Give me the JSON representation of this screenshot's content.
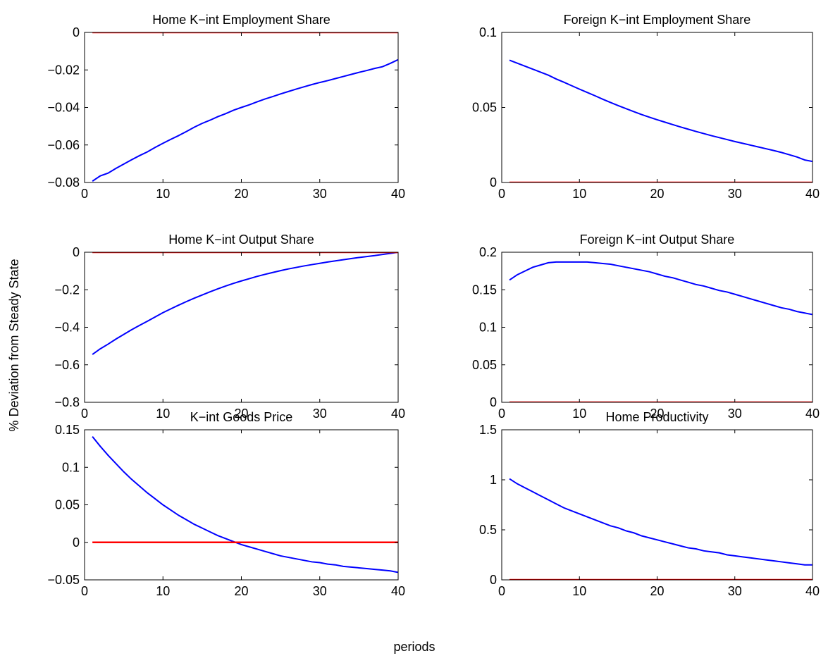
{
  "figure": {
    "ylabel": "% Deviation from Steady State",
    "xlabel": "periods"
  },
  "chart_data": [
    {
      "type": "line",
      "title": "Home K−int Employment Share",
      "xlim": [
        0,
        40
      ],
      "ylim": [
        -0.08,
        0
      ],
      "xticks": [
        0,
        10,
        20,
        30,
        40
      ],
      "xtick_labels": [
        "0",
        "10",
        "20",
        "30",
        "40"
      ],
      "yticks": [
        -0.08,
        -0.06,
        -0.04,
        -0.02,
        0
      ],
      "ytick_labels": [
        "−0.08",
        "−0.06",
        "−0.04",
        "−0.02",
        "0"
      ],
      "x": [
        1,
        2,
        3,
        4,
        5,
        6,
        7,
        8,
        9,
        10,
        11,
        12,
        13,
        14,
        15,
        16,
        17,
        18,
        19,
        20,
        21,
        22,
        23,
        24,
        25,
        26,
        27,
        28,
        29,
        30,
        31,
        32,
        33,
        34,
        35,
        36,
        37,
        38,
        39,
        40
      ],
      "series": [
        {
          "color": "#0000ff",
          "values": [
            -0.0793,
            -0.0765,
            -0.075,
            -0.0725,
            -0.0702,
            -0.0679,
            -0.0657,
            -0.0637,
            -0.0613,
            -0.0591,
            -0.057,
            -0.055,
            -0.0528,
            -0.0505,
            -0.0485,
            -0.0468,
            -0.0449,
            -0.0433,
            -0.0415,
            -0.04,
            -0.0386,
            -0.037,
            -0.0355,
            -0.0342,
            -0.0328,
            -0.0315,
            -0.0302,
            -0.029,
            -0.0278,
            -0.0267,
            -0.0257,
            -0.0246,
            -0.0235,
            -0.0224,
            -0.0213,
            -0.0203,
            -0.0192,
            -0.0183,
            -0.0165,
            -0.0145
          ]
        },
        {
          "color": "#ff0000",
          "values": [
            0,
            0,
            0,
            0,
            0,
            0,
            0,
            0,
            0,
            0,
            0,
            0,
            0,
            0,
            0,
            0,
            0,
            0,
            0,
            0,
            0,
            0,
            0,
            0,
            0,
            0,
            0,
            0,
            0,
            0,
            0,
            0,
            0,
            0,
            0,
            0,
            0,
            0,
            0,
            0
          ]
        }
      ]
    },
    {
      "type": "line",
      "title": "Foreign K−int Employment Share",
      "xlim": [
        0,
        40
      ],
      "ylim": [
        0,
        0.1
      ],
      "xticks": [
        0,
        10,
        20,
        30,
        40
      ],
      "xtick_labels": [
        "0",
        "10",
        "20",
        "30",
        "40"
      ],
      "yticks": [
        0,
        0.05,
        0.1
      ],
      "ytick_labels": [
        "0",
        "0.05",
        "0.1"
      ],
      "x": [
        1,
        2,
        3,
        4,
        5,
        6,
        7,
        8,
        9,
        10,
        11,
        12,
        13,
        14,
        15,
        16,
        17,
        18,
        19,
        20,
        21,
        22,
        23,
        24,
        25,
        26,
        27,
        28,
        29,
        30,
        31,
        32,
        33,
        34,
        35,
        36,
        37,
        38,
        39,
        40
      ],
      "series": [
        {
          "color": "#0000ff",
          "values": [
            0.0815,
            0.0795,
            0.0775,
            0.0755,
            0.0735,
            0.0715,
            0.069,
            0.0668,
            0.0645,
            0.0622,
            0.06,
            0.0578,
            0.0555,
            0.0533,
            0.0512,
            0.0492,
            0.0472,
            0.0453,
            0.0435,
            0.0418,
            0.0402,
            0.0386,
            0.037,
            0.0355,
            0.034,
            0.0326,
            0.0312,
            0.0299,
            0.0286,
            0.0273,
            0.0261,
            0.0249,
            0.0237,
            0.0225,
            0.0213,
            0.02,
            0.0185,
            0.017,
            0.015,
            0.014
          ]
        },
        {
          "color": "#ff0000",
          "values": [
            0,
            0,
            0,
            0,
            0,
            0,
            0,
            0,
            0,
            0,
            0,
            0,
            0,
            0,
            0,
            0,
            0,
            0,
            0,
            0,
            0,
            0,
            0,
            0,
            0,
            0,
            0,
            0,
            0,
            0,
            0,
            0,
            0,
            0,
            0,
            0,
            0,
            0,
            0,
            0
          ]
        }
      ]
    },
    {
      "type": "line",
      "title": "Home K−int Output Share",
      "xlim": [
        0,
        40
      ],
      "ylim": [
        -0.8,
        0
      ],
      "xticks": [
        0,
        10,
        20,
        30,
        40
      ],
      "xtick_labels": [
        "0",
        "10",
        "20",
        "30",
        "40"
      ],
      "yticks": [
        -0.8,
        -0.6,
        -0.4,
        -0.2,
        0
      ],
      "ytick_labels": [
        "−0.8",
        "−0.6",
        "−0.4",
        "−0.2",
        "0"
      ],
      "x": [
        1,
        2,
        3,
        4,
        5,
        6,
        7,
        8,
        9,
        10,
        11,
        12,
        13,
        14,
        15,
        16,
        17,
        18,
        19,
        20,
        21,
        22,
        23,
        24,
        25,
        26,
        27,
        28,
        29,
        30,
        31,
        32,
        33,
        34,
        35,
        36,
        37,
        38,
        39,
        40
      ],
      "series": [
        {
          "color": "#0000ff",
          "values": [
            -0.545,
            -0.515,
            -0.49,
            -0.463,
            -0.438,
            -0.413,
            -0.39,
            -0.368,
            -0.345,
            -0.322,
            -0.302,
            -0.282,
            -0.263,
            -0.245,
            -0.228,
            -0.211,
            -0.195,
            -0.18,
            -0.166,
            -0.153,
            -0.141,
            -0.129,
            -0.118,
            -0.108,
            -0.098,
            -0.089,
            -0.081,
            -0.073,
            -0.066,
            -0.059,
            -0.052,
            -0.046,
            -0.04,
            -0.034,
            -0.028,
            -0.023,
            -0.018,
            -0.012,
            -0.006,
            0.0
          ]
        },
        {
          "color": "#ff0000",
          "values": [
            0,
            0,
            0,
            0,
            0,
            0,
            0,
            0,
            0,
            0,
            0,
            0,
            0,
            0,
            0,
            0,
            0,
            0,
            0,
            0,
            0,
            0,
            0,
            0,
            0,
            0,
            0,
            0,
            0,
            0,
            0,
            0,
            0,
            0,
            0,
            0,
            0,
            0,
            0,
            0
          ]
        }
      ]
    },
    {
      "type": "line",
      "title": "Foreign K−int Output Share",
      "xlim": [
        0,
        40
      ],
      "ylim": [
        0,
        0.2
      ],
      "xticks": [
        0,
        10,
        20,
        30,
        40
      ],
      "xtick_labels": [
        "0",
        "10",
        "20",
        "30",
        "40"
      ],
      "yticks": [
        0,
        0.05,
        0.1,
        0.15,
        0.2
      ],
      "ytick_labels": [
        "0",
        "0.05",
        "0.1",
        "0.15",
        "0.2"
      ],
      "x": [
        1,
        2,
        3,
        4,
        5,
        6,
        7,
        8,
        9,
        10,
        11,
        12,
        13,
        14,
        15,
        16,
        17,
        18,
        19,
        20,
        21,
        22,
        23,
        24,
        25,
        26,
        27,
        28,
        29,
        30,
        31,
        32,
        33,
        34,
        35,
        36,
        37,
        38,
        39,
        40
      ],
      "series": [
        {
          "color": "#0000ff",
          "values": [
            0.163,
            0.17,
            0.175,
            0.18,
            0.183,
            0.186,
            0.187,
            0.187,
            0.187,
            0.187,
            0.187,
            0.186,
            0.185,
            0.184,
            0.182,
            0.18,
            0.178,
            0.176,
            0.174,
            0.171,
            0.168,
            0.166,
            0.163,
            0.16,
            0.157,
            0.155,
            0.152,
            0.149,
            0.147,
            0.144,
            0.141,
            0.138,
            0.135,
            0.132,
            0.129,
            0.126,
            0.124,
            0.121,
            0.119,
            0.117
          ]
        },
        {
          "color": "#ff0000",
          "values": [
            0,
            0,
            0,
            0,
            0,
            0,
            0,
            0,
            0,
            0,
            0,
            0,
            0,
            0,
            0,
            0,
            0,
            0,
            0,
            0,
            0,
            0,
            0,
            0,
            0,
            0,
            0,
            0,
            0,
            0,
            0,
            0,
            0,
            0,
            0,
            0,
            0,
            0,
            0,
            0
          ]
        }
      ]
    },
    {
      "type": "line",
      "title": "K−int Goods Price",
      "xlim": [
        0,
        40
      ],
      "ylim": [
        -0.05,
        0.15
      ],
      "xticks": [
        0,
        10,
        20,
        30,
        40
      ],
      "xtick_labels": [
        "0",
        "10",
        "20",
        "30",
        "40"
      ],
      "yticks": [
        -0.05,
        0,
        0.05,
        0.1,
        0.15
      ],
      "ytick_labels": [
        "−0.05",
        "0",
        "0.05",
        "0.1",
        "0.15"
      ],
      "x": [
        1,
        2,
        3,
        4,
        5,
        6,
        7,
        8,
        9,
        10,
        11,
        12,
        13,
        14,
        15,
        16,
        17,
        18,
        19,
        20,
        21,
        22,
        23,
        24,
        25,
        26,
        27,
        28,
        29,
        30,
        31,
        32,
        33,
        34,
        35,
        36,
        37,
        38,
        39,
        40
      ],
      "series": [
        {
          "color": "#0000ff",
          "values": [
            0.141,
            0.128,
            0.116,
            0.105,
            0.094,
            0.084,
            0.075,
            0.066,
            0.058,
            0.05,
            0.043,
            0.036,
            0.03,
            0.024,
            0.019,
            0.014,
            0.009,
            0.005,
            0.001,
            -0.003,
            -0.006,
            -0.009,
            -0.012,
            -0.015,
            -0.018,
            -0.02,
            -0.022,
            -0.024,
            -0.026,
            -0.027,
            -0.029,
            -0.03,
            -0.032,
            -0.033,
            -0.034,
            -0.035,
            -0.036,
            -0.037,
            -0.038,
            -0.04
          ]
        },
        {
          "color": "#ff0000",
          "values": [
            0,
            0,
            0,
            0,
            0,
            0,
            0,
            0,
            0,
            0,
            0,
            0,
            0,
            0,
            0,
            0,
            0,
            0,
            0,
            0,
            0,
            0,
            0,
            0,
            0,
            0,
            0,
            0,
            0,
            0,
            0,
            0,
            0,
            0,
            0,
            0,
            0,
            0,
            0,
            0
          ]
        }
      ]
    },
    {
      "type": "line",
      "title": "Home Productivity",
      "xlim": [
        0,
        40
      ],
      "ylim": [
        0,
        1.5
      ],
      "xticks": [
        0,
        10,
        20,
        30,
        40
      ],
      "xtick_labels": [
        "0",
        "10",
        "20",
        "30",
        "40"
      ],
      "yticks": [
        0,
        0.5,
        1,
        1.5
      ],
      "ytick_labels": [
        "0",
        "0.5",
        "1",
        "1.5"
      ],
      "x": [
        1,
        2,
        3,
        4,
        5,
        6,
        7,
        8,
        9,
        10,
        11,
        12,
        13,
        14,
        15,
        16,
        17,
        18,
        19,
        20,
        21,
        22,
        23,
        24,
        25,
        26,
        27,
        28,
        29,
        30,
        31,
        32,
        33,
        34,
        35,
        36,
        37,
        38,
        39,
        40
      ],
      "series": [
        {
          "color": "#0000ff",
          "values": [
            1.01,
            0.96,
            0.92,
            0.88,
            0.84,
            0.8,
            0.76,
            0.72,
            0.69,
            0.66,
            0.63,
            0.6,
            0.57,
            0.54,
            0.52,
            0.49,
            0.47,
            0.44,
            0.42,
            0.4,
            0.38,
            0.36,
            0.34,
            0.32,
            0.31,
            0.29,
            0.28,
            0.27,
            0.25,
            0.24,
            0.23,
            0.22,
            0.21,
            0.2,
            0.19,
            0.18,
            0.17,
            0.16,
            0.15,
            0.15
          ]
        },
        {
          "color": "#ff0000",
          "values": [
            0,
            0,
            0,
            0,
            0,
            0,
            0,
            0,
            0,
            0,
            0,
            0,
            0,
            0,
            0,
            0,
            0,
            0,
            0,
            0,
            0,
            0,
            0,
            0,
            0,
            0,
            0,
            0,
            0,
            0,
            0,
            0,
            0,
            0,
            0,
            0,
            0,
            0,
            0,
            0
          ]
        }
      ]
    }
  ]
}
